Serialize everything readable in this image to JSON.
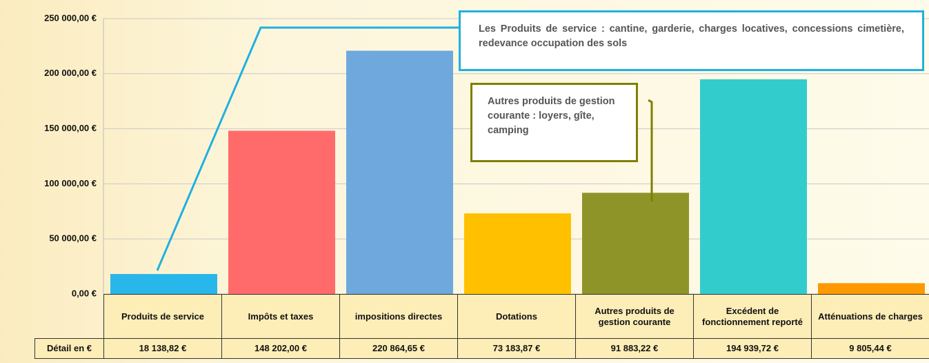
{
  "chart_data": {
    "type": "bar",
    "categories": [
      "Produits de service",
      "Impôts et taxes",
      "impositions directes",
      "Dotations",
      "Autres produits de gestion courante",
      "Excédent de fonctionnement reporté",
      "Atténuations de charges"
    ],
    "values": [
      18138.82,
      148202.0,
      220864.65,
      73183.87,
      91883.22,
      194939.72,
      9805.44
    ],
    "value_labels": [
      "18 138,82 €",
      "148 202,00 €",
      "220 864,65 €",
      "73 183,87 €",
      "91 883,22 €",
      "194 939,72 €",
      "9 805,44 €"
    ],
    "colors": [
      "#29b6ea",
      "#ff6b6b",
      "#6fa8dc",
      "#ffc000",
      "#8f9428",
      "#33cccc",
      "#ff9900"
    ],
    "table_row_label": "Détail en €",
    "ylim": [
      0,
      250000
    ],
    "yticks": [
      {
        "value": 0,
        "label": "0,00 €"
      },
      {
        "value": 50000,
        "label": "50 000,00 €"
      },
      {
        "value": 100000,
        "label": "100 000,00 €"
      },
      {
        "value": 150000,
        "label": "150 000,00 €"
      },
      {
        "value": 200000,
        "label": "200 000,00 €"
      },
      {
        "value": 250000,
        "label": "250 000,00 €"
      }
    ],
    "grid": true,
    "annotations": [
      "Les Produits de service : cantine, garderie, charges locatives, concessions cimetière, redevance occupation des sols",
      "Autres produits de gestion courante : loyers, gîte, camping"
    ]
  }
}
